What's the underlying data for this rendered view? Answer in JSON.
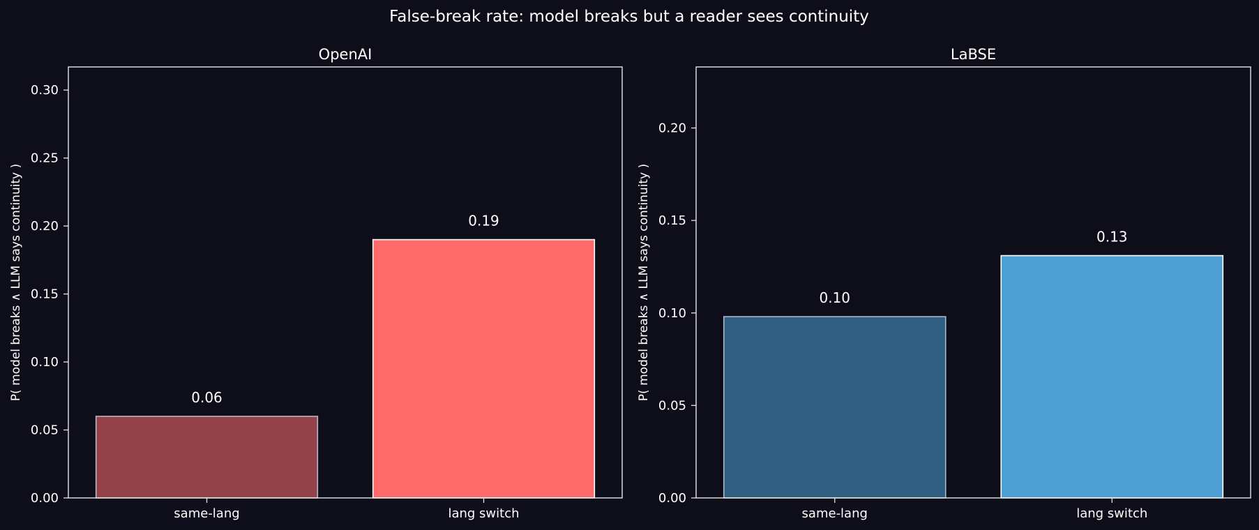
{
  "title": "False-break rate: model breaks but a reader sees continuity",
  "colors": {
    "background": "#0d0e1a",
    "axes_edge": "#e6e6e6",
    "text": "#ffffff"
  },
  "chart_data": [
    {
      "type": "bar",
      "title": "OpenAI",
      "categories": [
        "same-lang",
        "lang switch"
      ],
      "values": [
        0.06,
        0.19
      ],
      "value_labels": [
        "0.06",
        "0.19"
      ],
      "bar_colors": [
        "#924248",
        "#ff6b6b"
      ],
      "bar_edge_colors": [
        "#b9b9c0",
        "#ffffff"
      ],
      "ylabel": "P( model breaks ∧ LLM says continuity )",
      "xlabel": "",
      "ylim": [
        0,
        0.317
      ],
      "yticks": [
        0,
        0.05,
        0.1,
        0.15,
        0.2,
        0.25,
        0.3
      ],
      "ytick_labels": [
        "0.00",
        "0.05",
        "0.10",
        "0.15",
        "0.20",
        "0.25",
        "0.30"
      ],
      "grid": false
    },
    {
      "type": "bar",
      "title": "LaBSE",
      "categories": [
        "same-lang",
        "lang switch"
      ],
      "values": [
        0.098,
        0.131
      ],
      "value_labels": [
        "0.10",
        "0.13"
      ],
      "bar_colors": [
        "#315f82",
        "#4ca0d3"
      ],
      "bar_edge_colors": [
        "#a9b9c8",
        "#ffffff"
      ],
      "ylabel": "P( model breaks ∧ LLM says continuity )",
      "xlabel": "",
      "ylim": [
        0,
        0.233
      ],
      "yticks": [
        0,
        0.05,
        0.1,
        0.15,
        0.2
      ],
      "ytick_labels": [
        "0.00",
        "0.05",
        "0.10",
        "0.15",
        "0.20"
      ],
      "grid": false
    }
  ]
}
